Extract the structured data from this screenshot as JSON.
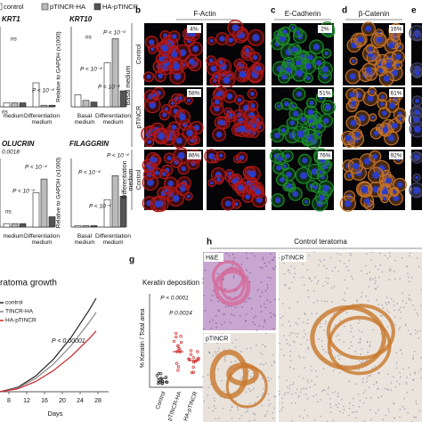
{
  "legend": [
    "control",
    "pTINCR-HA",
    "HA-pTINCR"
  ],
  "panel_labels": [
    "b",
    "c",
    "d",
    "e",
    "g",
    "h"
  ],
  "expression": [
    {
      "title": "KRT1",
      "notes": [
        "ns",
        "P < 10⁻⁴",
        "ns"
      ],
      "groups": [
        "medium",
        "Differentiation medium"
      ]
    },
    {
      "title": "KRT10",
      "y_label": "Relative to GAPDH (x1000)",
      "notes": [
        "ns",
        "P < 10⁻⁴",
        "P < 10⁻⁴",
        "P < 10⁻⁴"
      ],
      "groups": [
        "Basal medium",
        "Differentiation medium"
      ]
    },
    {
      "title": "OLUCRIN",
      "notes": [
        "0.0018",
        "P < 10⁻⁴",
        "P < 10⁻⁴",
        "ns"
      ],
      "groups": [
        "medium",
        "Differentiation medium"
      ]
    },
    {
      "title": "FILAGGRIN",
      "y_label": "Relative to GAPDH (x1000)",
      "notes": [
        "P < 10⁻⁴",
        "P < 10⁻⁴",
        "P < 10⁻⁴"
      ],
      "groups": [
        "Basal medium",
        "Differentiation medium"
      ]
    }
  ],
  "microscopy": {
    "columns": [
      "F-Actin",
      "E-Cadherin",
      "β-Catenin"
    ],
    "conditions": [
      "Basal medium",
      "Differentiation medium"
    ],
    "rows": [
      "Control",
      "pTINCR",
      "Control"
    ],
    "percentages": [
      [
        "4%",
        "2%",
        "16%"
      ],
      [
        "58%",
        "51%",
        "61%"
      ],
      [
        "86%",
        "76%",
        "92%"
      ]
    ]
  },
  "growth": {
    "title": "ratoma growth",
    "legend": [
      "control",
      "TINCR-HA",
      "HA-pTINCR"
    ],
    "note": "P < 0.00001",
    "x_label": "Days",
    "x_ticks": [
      "8",
      "12",
      "16",
      "20",
      "24",
      "28"
    ]
  },
  "keratin": {
    "title": "Keratin deposition",
    "y_label": "% Keratin / Total area",
    "notes": [
      "P < 0.0001",
      "P 0.0024"
    ],
    "categories": [
      "Control",
      "pTINCR-HA",
      "HA-pTINCR"
    ]
  },
  "teratoma": {
    "title": "Control teratoma",
    "insets": [
      "H&E",
      "pTINCR",
      "pTINCR"
    ]
  }
}
